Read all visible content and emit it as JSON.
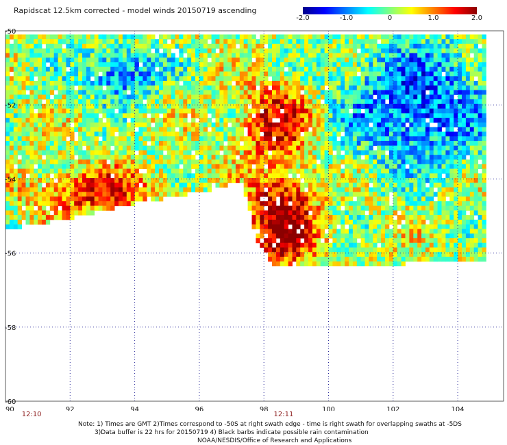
{
  "chart_data": {
    "type": "heatmap",
    "title": "Rapidscat 12.5km corrected - model winds 20150719 ascending",
    "colorbar": {
      "min": -2.0,
      "max": 2.0,
      "tick_labels": [
        "-2.0",
        "-1.0",
        "0",
        "1.0",
        "2.0"
      ],
      "tick_values": [
        -2.0,
        -1.0,
        0,
        1.0,
        2.0
      ],
      "colors": [
        "#00008b",
        "#0000ff",
        "#0080ff",
        "#00ffff",
        "#80ff80",
        "#ffff00",
        "#ff8000",
        "#ff0000",
        "#8b0000"
      ]
    },
    "xlim": [
      90,
      104.8
    ],
    "ylim": [
      -60,
      -50
    ],
    "x_ticks": [
      "90",
      "92",
      "94",
      "96",
      "98",
      "100",
      "102",
      "104"
    ],
    "x_tick_values": [
      90,
      92,
      94,
      96,
      98,
      100,
      102,
      104
    ],
    "y_ticks": [
      "-50",
      "-52",
      "-54",
      "-56",
      "-58",
      "-60"
    ],
    "y_tick_values": [
      -50,
      -52,
      -54,
      -56,
      -58,
      -60
    ],
    "grid": true,
    "times": [
      {
        "label": "12:10",
        "lon": 90.8
      },
      {
        "label": "12:11",
        "lon": 98.6
      }
    ],
    "field_regions": [
      {
        "desc": "strong positive core",
        "lon": [
          97.7,
          99.3
        ],
        "lat": [
          -54.0,
          -56.2
        ],
        "value": 1.9
      },
      {
        "desc": "positive band",
        "lon": [
          97.5,
          99.2
        ],
        "lat": [
          -51.6,
          -53.2
        ],
        "value": 1.5
      },
      {
        "desc": "positive strip",
        "lon": [
          91.0,
          94.5
        ],
        "lat": [
          -53.9,
          -54.7
        ],
        "value": 1.3
      },
      {
        "desc": "negative region",
        "lon": [
          100.5,
          104.8
        ],
        "lat": [
          -50.5,
          -53.4
        ],
        "value": -1.4
      },
      {
        "desc": "negative cluster",
        "lon": [
          92.5,
          94.5
        ],
        "lat": [
          -50.6,
          -51.6
        ],
        "value": -1.2
      }
    ],
    "swath_lat_edge": [
      {
        "lon": 90.0,
        "lat": -55.3
      },
      {
        "lon": 92.0,
        "lat": -55.0
      },
      {
        "lon": 94.0,
        "lat": -54.6
      },
      {
        "lon": 96.0,
        "lat": -54.3
      },
      {
        "lon": 97.3,
        "lat": -54.0
      },
      {
        "lon": 97.8,
        "lat": -55.6
      },
      {
        "lon": 98.3,
        "lat": -56.3
      },
      {
        "lon": 101.0,
        "lat": -56.3
      },
      {
        "lon": 104.8,
        "lat": -56.1
      }
    ]
  },
  "notes": {
    "line1": "Note: 1) Times are GMT 2)Times correspond to -50S at right swath edge - time is right swath for overlapping swaths at -5DS",
    "line2": "3)Data buffer is 22 hrs for 20150719 4) Black barbs indicate possible rain contamination",
    "line3": "NOAA/NESDIS/Office of Research and Applications"
  }
}
